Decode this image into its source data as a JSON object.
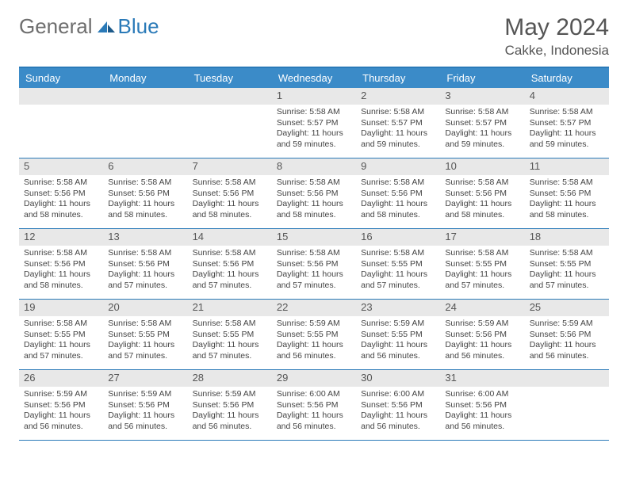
{
  "logo": {
    "text1": "General",
    "text2": "Blue"
  },
  "title": "May 2024",
  "location": "Cakke, Indonesia",
  "colors": {
    "header_bg": "#3b8bc8",
    "border": "#2a7ab8",
    "daynum_bg": "#e8e8e8",
    "text": "#444444"
  },
  "day_names": [
    "Sunday",
    "Monday",
    "Tuesday",
    "Wednesday",
    "Thursday",
    "Friday",
    "Saturday"
  ],
  "weeks": [
    [
      {
        "n": "",
        "sr": "",
        "ss": "",
        "dl": ""
      },
      {
        "n": "",
        "sr": "",
        "ss": "",
        "dl": ""
      },
      {
        "n": "",
        "sr": "",
        "ss": "",
        "dl": ""
      },
      {
        "n": "1",
        "sr": "5:58 AM",
        "ss": "5:57 PM",
        "dl": "11 hours and 59 minutes."
      },
      {
        "n": "2",
        "sr": "5:58 AM",
        "ss": "5:57 PM",
        "dl": "11 hours and 59 minutes."
      },
      {
        "n": "3",
        "sr": "5:58 AM",
        "ss": "5:57 PM",
        "dl": "11 hours and 59 minutes."
      },
      {
        "n": "4",
        "sr": "5:58 AM",
        "ss": "5:57 PM",
        "dl": "11 hours and 59 minutes."
      }
    ],
    [
      {
        "n": "5",
        "sr": "5:58 AM",
        "ss": "5:56 PM",
        "dl": "11 hours and 58 minutes."
      },
      {
        "n": "6",
        "sr": "5:58 AM",
        "ss": "5:56 PM",
        "dl": "11 hours and 58 minutes."
      },
      {
        "n": "7",
        "sr": "5:58 AM",
        "ss": "5:56 PM",
        "dl": "11 hours and 58 minutes."
      },
      {
        "n": "8",
        "sr": "5:58 AM",
        "ss": "5:56 PM",
        "dl": "11 hours and 58 minutes."
      },
      {
        "n": "9",
        "sr": "5:58 AM",
        "ss": "5:56 PM",
        "dl": "11 hours and 58 minutes."
      },
      {
        "n": "10",
        "sr": "5:58 AM",
        "ss": "5:56 PM",
        "dl": "11 hours and 58 minutes."
      },
      {
        "n": "11",
        "sr": "5:58 AM",
        "ss": "5:56 PM",
        "dl": "11 hours and 58 minutes."
      }
    ],
    [
      {
        "n": "12",
        "sr": "5:58 AM",
        "ss": "5:56 PM",
        "dl": "11 hours and 58 minutes."
      },
      {
        "n": "13",
        "sr": "5:58 AM",
        "ss": "5:56 PM",
        "dl": "11 hours and 57 minutes."
      },
      {
        "n": "14",
        "sr": "5:58 AM",
        "ss": "5:56 PM",
        "dl": "11 hours and 57 minutes."
      },
      {
        "n": "15",
        "sr": "5:58 AM",
        "ss": "5:56 PM",
        "dl": "11 hours and 57 minutes."
      },
      {
        "n": "16",
        "sr": "5:58 AM",
        "ss": "5:55 PM",
        "dl": "11 hours and 57 minutes."
      },
      {
        "n": "17",
        "sr": "5:58 AM",
        "ss": "5:55 PM",
        "dl": "11 hours and 57 minutes."
      },
      {
        "n": "18",
        "sr": "5:58 AM",
        "ss": "5:55 PM",
        "dl": "11 hours and 57 minutes."
      }
    ],
    [
      {
        "n": "19",
        "sr": "5:58 AM",
        "ss": "5:55 PM",
        "dl": "11 hours and 57 minutes."
      },
      {
        "n": "20",
        "sr": "5:58 AM",
        "ss": "5:55 PM",
        "dl": "11 hours and 57 minutes."
      },
      {
        "n": "21",
        "sr": "5:58 AM",
        "ss": "5:55 PM",
        "dl": "11 hours and 57 minutes."
      },
      {
        "n": "22",
        "sr": "5:59 AM",
        "ss": "5:55 PM",
        "dl": "11 hours and 56 minutes."
      },
      {
        "n": "23",
        "sr": "5:59 AM",
        "ss": "5:55 PM",
        "dl": "11 hours and 56 minutes."
      },
      {
        "n": "24",
        "sr": "5:59 AM",
        "ss": "5:56 PM",
        "dl": "11 hours and 56 minutes."
      },
      {
        "n": "25",
        "sr": "5:59 AM",
        "ss": "5:56 PM",
        "dl": "11 hours and 56 minutes."
      }
    ],
    [
      {
        "n": "26",
        "sr": "5:59 AM",
        "ss": "5:56 PM",
        "dl": "11 hours and 56 minutes."
      },
      {
        "n": "27",
        "sr": "5:59 AM",
        "ss": "5:56 PM",
        "dl": "11 hours and 56 minutes."
      },
      {
        "n": "28",
        "sr": "5:59 AM",
        "ss": "5:56 PM",
        "dl": "11 hours and 56 minutes."
      },
      {
        "n": "29",
        "sr": "6:00 AM",
        "ss": "5:56 PM",
        "dl": "11 hours and 56 minutes."
      },
      {
        "n": "30",
        "sr": "6:00 AM",
        "ss": "5:56 PM",
        "dl": "11 hours and 56 minutes."
      },
      {
        "n": "31",
        "sr": "6:00 AM",
        "ss": "5:56 PM",
        "dl": "11 hours and 56 minutes."
      },
      {
        "n": "",
        "sr": "",
        "ss": "",
        "dl": ""
      }
    ]
  ],
  "labels": {
    "sunrise": "Sunrise:",
    "sunset": "Sunset:",
    "daylight": "Daylight:"
  }
}
